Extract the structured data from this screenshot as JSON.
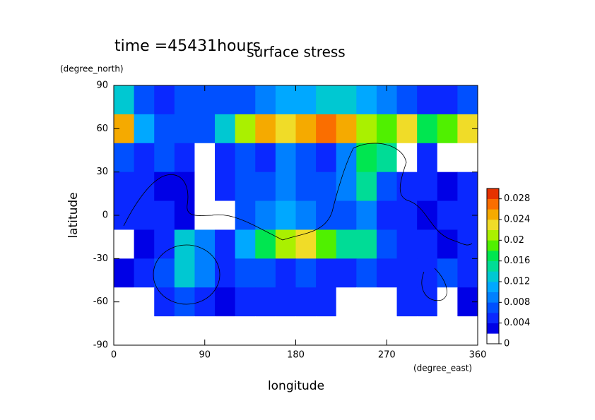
{
  "chart_data": {
    "type": "contour",
    "title": "surface stress",
    "subtitle": "time =45431hours",
    "x_label": "longitude",
    "x_unit": "(degree_east)",
    "y_label": "latitude",
    "y_unit": "(degree_north)",
    "xlim": [
      0,
      360
    ],
    "ylim": [
      -90,
      90
    ],
    "xticks": [
      0,
      90,
      180,
      270,
      360
    ],
    "yticks": [
      -90,
      -60,
      -30,
      0,
      30,
      60,
      90
    ],
    "x": [
      10,
      30,
      50,
      70,
      90,
      110,
      130,
      150,
      170,
      190,
      210,
      230,
      250,
      270,
      290,
      310,
      330,
      350
    ],
    "y": [
      80,
      60,
      40,
      20,
      0,
      -20,
      -40,
      -60,
      -80
    ],
    "z": [
      [
        0.012,
        0.006,
        0.004,
        0.006,
        0.006,
        0.006,
        0.006,
        0.008,
        0.01,
        0.01,
        0.012,
        0.012,
        0.01,
        0.008,
        0.006,
        0.004,
        0.004,
        0.006
      ],
      [
        0.024,
        0.01,
        0.006,
        0.006,
        0.006,
        0.012,
        0.02,
        0.024,
        0.022,
        0.024,
        0.026,
        0.024,
        0.02,
        0.018,
        0.022,
        0.016,
        0.018,
        0.022
      ],
      [
        0.006,
        0.004,
        0.006,
        0.004,
        0.001,
        0.004,
        0.006,
        0.004,
        0.008,
        0.006,
        0.004,
        0.008,
        0.016,
        0.014,
        0.001,
        0.004,
        0.001,
        0.001
      ],
      [
        0.004,
        0.004,
        0.002,
        0.003,
        0.001,
        0.004,
        0.006,
        0.006,
        0.008,
        0.006,
        0.006,
        0.008,
        0.014,
        0.006,
        0.004,
        0.004,
        0.003,
        0.004
      ],
      [
        0.004,
        0.004,
        0.004,
        0.003,
        0.001,
        0.001,
        0.006,
        0.008,
        0.01,
        0.008,
        0.006,
        0.006,
        0.008,
        0.004,
        0.004,
        0.002,
        0.004,
        0.004
      ],
      [
        0.001,
        0.003,
        0.004,
        0.012,
        0.008,
        0.004,
        0.01,
        0.016,
        0.02,
        0.022,
        0.018,
        0.014,
        0.014,
        0.006,
        0.004,
        0.004,
        0.003,
        0.004
      ],
      [
        0.003,
        0.004,
        0.006,
        0.012,
        0.008,
        0.004,
        0.006,
        0.006,
        0.004,
        0.006,
        0.004,
        0.004,
        0.006,
        0.004,
        0.004,
        0.004,
        0.006,
        0.004
      ],
      [
        0.001,
        0.001,
        0.004,
        0.006,
        0.004,
        0.003,
        0.004,
        0.004,
        0.004,
        0.004,
        0.004,
        0.001,
        0.001,
        0.001,
        0.004,
        0.004,
        0.001,
        0.003
      ],
      [
        0.001,
        0.001,
        0.001,
        0.001,
        0.001,
        0.001,
        0.001,
        0.001,
        0.001,
        0.001,
        0.001,
        0.001,
        0.001,
        0.001,
        0.001,
        0.001,
        0.001,
        0.001
      ]
    ],
    "clim": [
      0,
      0.03
    ],
    "colorbar_ticks": [
      0,
      0.004,
      0.008,
      0.012,
      0.016,
      0.02,
      0.024,
      0.028
    ],
    "colors": [
      "#ffffff",
      "#0000e6",
      "#0a28ff",
      "#0050ff",
      "#0080ff",
      "#00a8ff",
      "#00c8d2",
      "#00dc96",
      "#00e650",
      "#50f000",
      "#aaf000",
      "#f0dc28",
      "#f5aa00",
      "#fa6e00",
      "#e63200"
    ]
  }
}
